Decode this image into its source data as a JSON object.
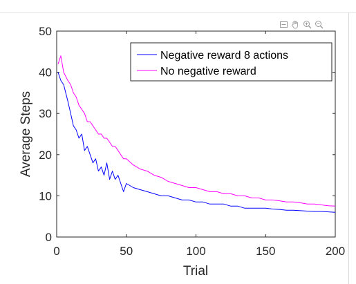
{
  "toolbar": {
    "icons": [
      "select-brush-icon",
      "pan-hand-icon",
      "zoom-in-icon",
      "zoom-out-icon"
    ]
  },
  "chart_data": {
    "type": "line",
    "title": "",
    "xlabel": "Trial",
    "ylabel": "Average Steps",
    "xlim": [
      0,
      200
    ],
    "ylim": [
      0,
      50
    ],
    "xticks": [
      0,
      50,
      100,
      150,
      200
    ],
    "yticks": [
      0,
      10,
      20,
      30,
      40,
      50
    ],
    "grid": false,
    "legend_position": "top-right",
    "series": [
      {
        "name": "Negative reward 8 actions",
        "color": "#0000ff",
        "x": [
          1,
          3,
          5,
          8,
          10,
          12,
          14,
          16,
          18,
          20,
          22,
          24,
          26,
          28,
          30,
          32,
          34,
          36,
          38,
          40,
          42,
          44,
          46,
          48,
          50,
          55,
          60,
          65,
          70,
          75,
          80,
          85,
          90,
          95,
          100,
          105,
          110,
          115,
          120,
          125,
          130,
          135,
          140,
          145,
          150,
          155,
          160,
          165,
          170,
          175,
          180,
          185,
          190,
          195,
          200
        ],
        "y": [
          40,
          38,
          37,
          33,
          30,
          27,
          26,
          24,
          25,
          21,
          22,
          20,
          18,
          19,
          16,
          17,
          15,
          18,
          14,
          16,
          14,
          15,
          13,
          11,
          13,
          12,
          11.5,
          11,
          10.5,
          10,
          10,
          9.5,
          9,
          9,
          8.5,
          8.5,
          8,
          8,
          8,
          7.5,
          7.5,
          7,
          7,
          7,
          7,
          6.8,
          6.7,
          6.5,
          6.5,
          6.4,
          6.3,
          6.2,
          6.2,
          6.1,
          6
        ]
      },
      {
        "name": "No negative reward",
        "color": "#ff00ff",
        "x": [
          1,
          3,
          5,
          8,
          10,
          12,
          14,
          16,
          18,
          20,
          22,
          24,
          26,
          28,
          30,
          32,
          34,
          36,
          38,
          40,
          42,
          44,
          46,
          48,
          50,
          55,
          60,
          65,
          70,
          75,
          80,
          85,
          90,
          95,
          100,
          105,
          110,
          115,
          120,
          125,
          130,
          135,
          140,
          145,
          150,
          155,
          160,
          165,
          170,
          175,
          180,
          185,
          190,
          195,
          200
        ],
        "y": [
          42,
          44,
          40,
          38,
          37,
          35,
          34,
          32,
          31,
          30,
          28,
          28,
          27,
          26,
          25,
          25,
          24,
          24,
          23,
          22,
          22,
          21,
          20,
          19,
          19,
          17.5,
          16.5,
          16,
          15,
          14.5,
          13.5,
          13,
          12.5,
          12,
          12,
          11.5,
          11,
          11,
          10.5,
          10.5,
          10,
          10,
          9.5,
          9.5,
          9,
          9,
          8.8,
          8.5,
          8.5,
          8.3,
          8,
          8,
          7.8,
          7.6,
          7.5
        ]
      }
    ]
  }
}
